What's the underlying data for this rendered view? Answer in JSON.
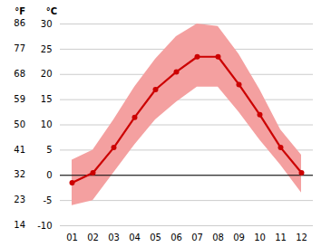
{
  "chart_data": {
    "type": "line",
    "categories": [
      "01",
      "02",
      "03",
      "04",
      "05",
      "06",
      "07",
      "08",
      "09",
      "10",
      "11",
      "12"
    ],
    "series": [
      {
        "type": "band",
        "color": "#f4a0a0",
        "low": [
          -6.0,
          -5.0,
          0.5,
          6.0,
          11.0,
          14.5,
          17.5,
          17.5,
          12.5,
          7.0,
          2.0,
          -3.5
        ],
        "high": [
          3.0,
          5.0,
          11.0,
          17.5,
          23.0,
          27.5,
          30.0,
          29.5,
          24.0,
          17.0,
          9.0,
          4.0
        ]
      },
      {
        "type": "line",
        "color": "#cc0000",
        "marker": "o",
        "values": [
          -1.5,
          0.5,
          5.5,
          11.5,
          17.0,
          20.5,
          23.5,
          23.5,
          18.0,
          12.0,
          5.5,
          0.5
        ]
      }
    ],
    "ylim": [
      -10,
      30
    ],
    "yticks": [
      -10,
      -5,
      0,
      5,
      10,
      15,
      20,
      25,
      30
    ],
    "ylabel": "°C",
    "y2lim": [
      14,
      86
    ],
    "y2ticks": [
      14,
      23,
      32,
      41,
      50,
      59,
      68,
      77,
      86
    ],
    "y2label": "°F",
    "reference_lines": [
      {
        "y": 0,
        "color": "#000000"
      }
    ],
    "grid": true
  }
}
